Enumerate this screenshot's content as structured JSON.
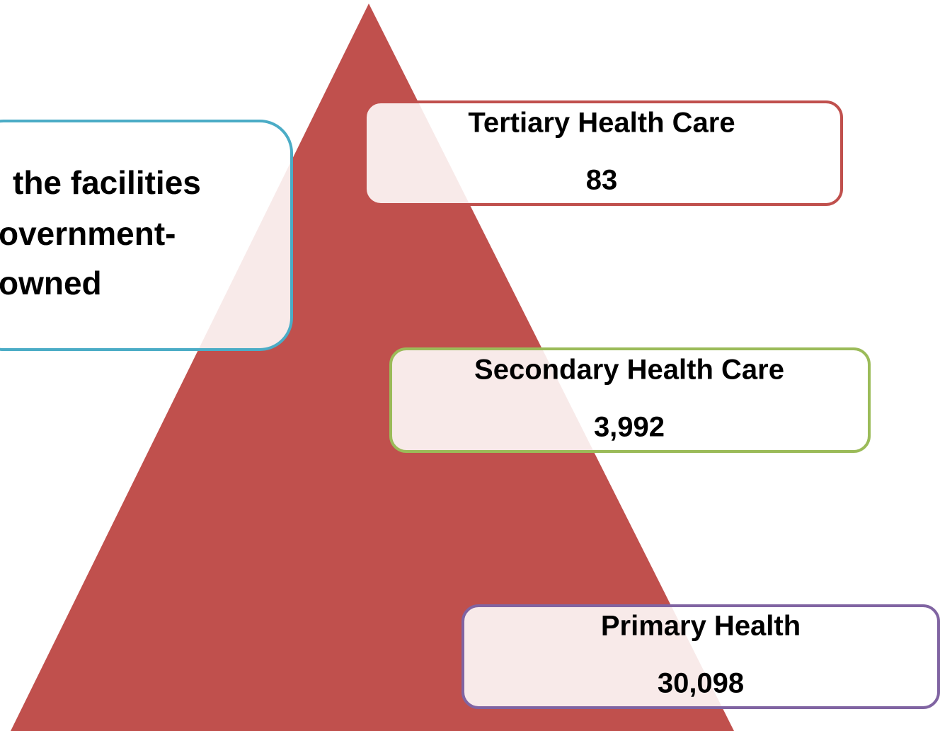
{
  "left_note": {
    "lines": [
      "the facilities",
      "overnment-",
      "owned"
    ]
  },
  "levels": [
    {
      "label": "Tertiary Health Care",
      "value": "83"
    },
    {
      "label": "Secondary Health Care",
      "value": "3,992"
    },
    {
      "label": "Primary Health",
      "value": "30,098"
    }
  ]
}
